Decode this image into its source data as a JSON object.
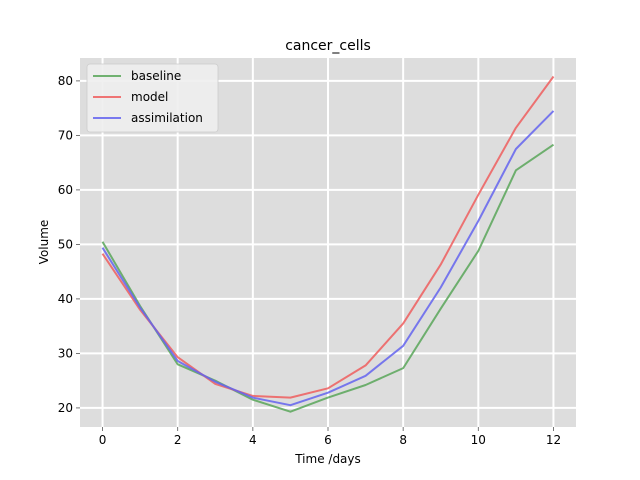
{
  "chart_data": {
    "type": "line",
    "title": "cancer_cells",
    "xlabel": "Time /days",
    "ylabel": "Volume",
    "xlim": [
      -0.6,
      12.6
    ],
    "ylim": [
      16.5,
      84.2
    ],
    "xticks": [
      0,
      2,
      4,
      6,
      8,
      10,
      12
    ],
    "yticks": [
      20,
      30,
      40,
      50,
      60,
      70,
      80
    ],
    "grid": true,
    "legend_position": "top-left",
    "x": [
      0,
      1,
      2,
      3,
      4,
      5,
      6,
      7,
      8,
      9,
      10,
      11,
      12
    ],
    "series": [
      {
        "name": "baseline",
        "color": "#59a659",
        "values": [
          50.5,
          38.7,
          28.0,
          25.0,
          21.5,
          19.3,
          21.9,
          24.2,
          27.3,
          38.2,
          48.8,
          63.6,
          68.3
        ]
      },
      {
        "name": "model",
        "color": "#ee5e5e",
        "values": [
          48.3,
          38.0,
          29.3,
          24.4,
          22.2,
          21.9,
          23.6,
          27.8,
          35.5,
          46.3,
          59.1,
          71.4,
          80.8
        ]
      },
      {
        "name": "assimilation",
        "color": "#6464ee",
        "values": [
          49.4,
          38.4,
          28.6,
          24.8,
          21.9,
          20.5,
          22.8,
          25.9,
          31.4,
          42.1,
          54.3,
          67.5,
          74.5
        ]
      }
    ]
  }
}
